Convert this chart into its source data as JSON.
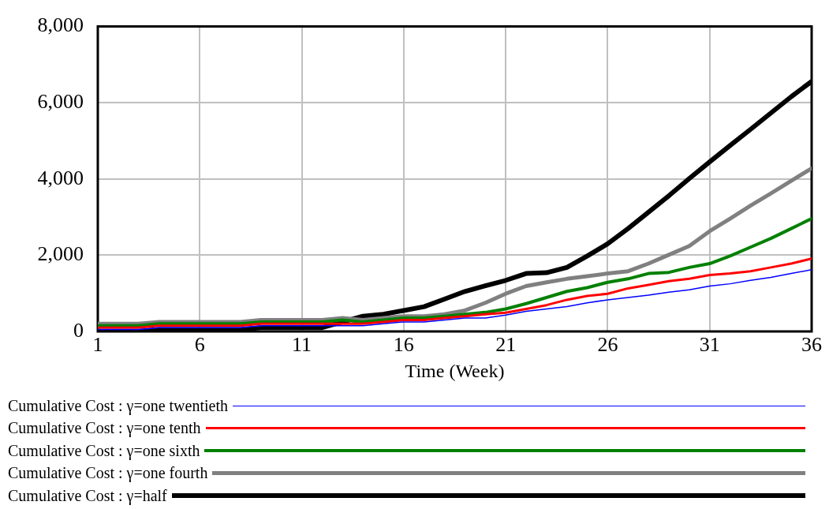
{
  "chart_data": {
    "type": "line",
    "xlabel": "Time (Week)",
    "x": [
      1,
      2,
      3,
      4,
      5,
      6,
      7,
      8,
      9,
      10,
      11,
      12,
      13,
      14,
      15,
      16,
      17,
      18,
      19,
      20,
      21,
      22,
      23,
      24,
      25,
      26,
      27,
      28,
      29,
      30,
      31,
      32,
      33,
      34,
      35,
      36
    ],
    "series": [
      {
        "name": "Cumulative Cost : γ=one twentieth",
        "color": "#0000ff",
        "values": [
          50,
          50,
          50,
          100,
          100,
          100,
          100,
          100,
          150,
          150,
          150,
          150,
          150,
          150,
          200,
          250,
          250,
          300,
          350,
          350,
          430,
          530,
          590,
          650,
          750,
          830,
          890,
          950,
          1030,
          1090,
          1190,
          1250,
          1340,
          1420,
          1520,
          1620
        ]
      },
      {
        "name": "Cumulative Cost : γ=one tenth",
        "color": "#ff0000",
        "values": [
          100,
          100,
          100,
          150,
          150,
          150,
          150,
          150,
          200,
          200,
          200,
          200,
          200,
          200,
          250,
          300,
          300,
          350,
          400,
          450,
          490,
          590,
          690,
          830,
          930,
          990,
          1130,
          1220,
          1320,
          1380,
          1480,
          1520,
          1580,
          1680,
          1780,
          1910
        ]
      },
      {
        "name": "Cumulative Cost : γ=one sixth",
        "color": "#008000",
        "values": [
          150,
          150,
          150,
          200,
          200,
          200,
          200,
          200,
          250,
          250,
          250,
          250,
          300,
          250,
          300,
          350,
          350,
          400,
          450,
          500,
          590,
          730,
          890,
          1050,
          1150,
          1290,
          1380,
          1520,
          1550,
          1680,
          1780,
          1980,
          2210,
          2440,
          2700,
          2960
        ]
      },
      {
        "name": "Cumulative Cost : γ=one fourth",
        "color": "#808080",
        "values": [
          200,
          200,
          200,
          250,
          250,
          250,
          250,
          250,
          300,
          300,
          300,
          300,
          350,
          300,
          350,
          400,
          400,
          450,
          550,
          750,
          990,
          1190,
          1290,
          1380,
          1450,
          1520,
          1580,
          1780,
          2010,
          2240,
          2630,
          2960,
          3300,
          3620,
          3950,
          4280
        ]
      },
      {
        "name": "Cumulative Cost : γ=half",
        "color": "#000000",
        "values": [
          0,
          0,
          0,
          50,
          50,
          50,
          50,
          50,
          100,
          100,
          100,
          100,
          250,
          400,
          450,
          550,
          650,
          850,
          1050,
          1200,
          1340,
          1520,
          1540,
          1680,
          1980,
          2300,
          2700,
          3130,
          3560,
          4010,
          4450,
          4880,
          5300,
          5730,
          6160,
          6560
        ]
      }
    ],
    "xlim": [
      1,
      36
    ],
    "xticks": [
      1,
      6,
      11,
      16,
      21,
      26,
      31,
      36
    ],
    "ylim": [
      0,
      8000
    ],
    "yticks": [
      {
        "value": 0,
        "label": "0"
      },
      {
        "value": 2000,
        "label": "2,000"
      },
      {
        "value": 4000,
        "label": "4,000"
      },
      {
        "value": 6000,
        "label": "6,000"
      },
      {
        "value": 8000,
        "label": "8,000"
      }
    ],
    "grid": true,
    "legend": "bottom",
    "marker": "none",
    "line_style": "solid"
  }
}
